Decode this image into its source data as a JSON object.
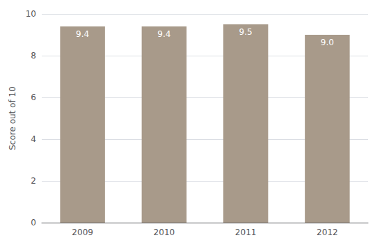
{
  "chart_data": {
    "type": "bar",
    "categories": [
      "2009",
      "2010",
      "2011",
      "2012"
    ],
    "values": [
      9.4,
      9.4,
      9.5,
      9.0
    ],
    "value_labels": [
      "9.4",
      "9.4",
      "9.5",
      "9.0"
    ],
    "data_labels": true,
    "color": "#a89a8a",
    "ylabel": "Score out of 10",
    "ylim": [
      0,
      10
    ],
    "yticks": [
      0,
      2,
      4,
      6,
      8,
      10
    ],
    "grid": true
  }
}
